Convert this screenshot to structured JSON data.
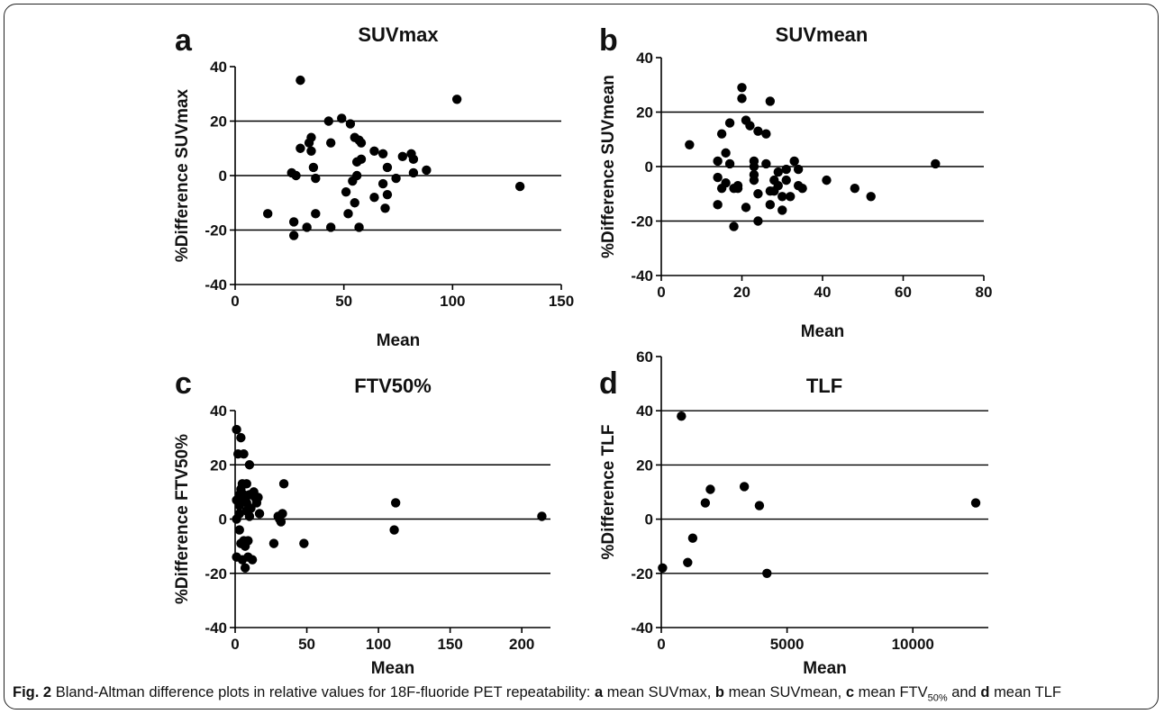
{
  "caption": {
    "fig": "Fig. 2",
    "intro": "Bland-Altman difference plots in relative values for 18F-fluoride PET repeatability:",
    "items": [
      {
        "letter": "a",
        "text": "mean SUVmax"
      },
      {
        "letter": "b",
        "text": "mean SUVmean"
      },
      {
        "letter": "c",
        "text": "mean FTV",
        "sub": "50%"
      },
      {
        "letter": "d",
        "text": "mean TLF"
      }
    ]
  },
  "colors": {
    "points": "#000000",
    "axes": "#000000",
    "text": "#111111"
  },
  "chart_data": [
    {
      "panel": "a",
      "type": "scatter",
      "title": "SUVmax",
      "xlabel": "Mean",
      "ylabel": "%Difference SUVmax",
      "xlim": [
        0,
        150
      ],
      "ylim": [
        -40,
        40
      ],
      "xticks": [
        0,
        50,
        100,
        150
      ],
      "yticks": [
        -40,
        -20,
        0,
        20,
        40
      ],
      "reference_lines": [
        20,
        0,
        -20
      ],
      "points": [
        [
          30,
          35
        ],
        [
          102,
          28
        ],
        [
          131,
          -4
        ],
        [
          15,
          -14
        ],
        [
          26,
          1
        ],
        [
          27,
          -22
        ],
        [
          27,
          -17
        ],
        [
          28,
          0
        ],
        [
          30,
          10
        ],
        [
          33,
          -19
        ],
        [
          34,
          12
        ],
        [
          35,
          9
        ],
        [
          35,
          14
        ],
        [
          36,
          3
        ],
        [
          37,
          -1
        ],
        [
          37,
          -14
        ],
        [
          43,
          20
        ],
        [
          44,
          12
        ],
        [
          44,
          -19
        ],
        [
          49,
          21
        ],
        [
          51,
          -6
        ],
        [
          52,
          -14
        ],
        [
          53,
          19
        ],
        [
          54,
          -2
        ],
        [
          55,
          14
        ],
        [
          55,
          -10
        ],
        [
          56,
          5
        ],
        [
          56,
          0
        ],
        [
          57,
          13
        ],
        [
          57,
          -19
        ],
        [
          58,
          12
        ],
        [
          58,
          6
        ],
        [
          64,
          9
        ],
        [
          64,
          -8
        ],
        [
          68,
          8
        ],
        [
          68,
          -3
        ],
        [
          69,
          -12
        ],
        [
          70,
          3
        ],
        [
          70,
          -7
        ],
        [
          74,
          -1
        ],
        [
          77,
          7
        ],
        [
          81,
          8
        ],
        [
          82,
          6
        ],
        [
          82,
          1
        ],
        [
          88,
          2
        ]
      ]
    },
    {
      "panel": "b",
      "type": "scatter",
      "title": "SUVmean",
      "xlabel": "Mean",
      "ylabel": "%Difference SUVmean",
      "xlim": [
        0,
        80
      ],
      "ylim": [
        -40,
        40
      ],
      "xticks": [
        0,
        20,
        40,
        60,
        80
      ],
      "yticks": [
        -40,
        -20,
        0,
        20,
        40
      ],
      "reference_lines": [
        20,
        0,
        -20
      ],
      "points": [
        [
          7,
          8
        ],
        [
          14,
          2
        ],
        [
          14,
          -4
        ],
        [
          14,
          -14
        ],
        [
          15,
          12
        ],
        [
          15,
          -8
        ],
        [
          16,
          5
        ],
        [
          16,
          -6
        ],
        [
          17,
          1
        ],
        [
          17,
          16
        ],
        [
          18,
          -8
        ],
        [
          18,
          -22
        ],
        [
          19,
          -7
        ],
        [
          19,
          -8
        ],
        [
          20,
          29
        ],
        [
          20,
          25
        ],
        [
          21,
          17
        ],
        [
          21,
          -15
        ],
        [
          22,
          15
        ],
        [
          23,
          2
        ],
        [
          23,
          0
        ],
        [
          23,
          -3
        ],
        [
          23,
          -5
        ],
        [
          24,
          13
        ],
        [
          24,
          -10
        ],
        [
          24,
          -20
        ],
        [
          26,
          12
        ],
        [
          26,
          1
        ],
        [
          27,
          24
        ],
        [
          27,
          -9
        ],
        [
          27,
          -14
        ],
        [
          28,
          -5
        ],
        [
          28,
          -9
        ],
        [
          29,
          -2
        ],
        [
          29,
          -7
        ],
        [
          30,
          -11
        ],
        [
          30,
          -16
        ],
        [
          31,
          -5
        ],
        [
          31,
          -1
        ],
        [
          32,
          -11
        ],
        [
          33,
          2
        ],
        [
          34,
          -1
        ],
        [
          34,
          -7
        ],
        [
          35,
          -8
        ],
        [
          41,
          -5
        ],
        [
          48,
          -8
        ],
        [
          52,
          -11
        ],
        [
          68,
          1
        ]
      ]
    },
    {
      "panel": "c",
      "type": "scatter",
      "title": "FTV50%",
      "xlabel": "Mean",
      "ylabel": "%Difference FTV50%",
      "xlim": [
        0,
        220
      ],
      "ylim": [
        -40,
        40
      ],
      "xticks": [
        0,
        50,
        100,
        150,
        200
      ],
      "yticks": [
        -40,
        -20,
        0,
        20,
        40
      ],
      "reference_lines": [
        20,
        0,
        -20
      ],
      "points": [
        [
          1,
          33
        ],
        [
          1,
          7
        ],
        [
          1,
          0
        ],
        [
          1,
          -14
        ],
        [
          2,
          24
        ],
        [
          3,
          9
        ],
        [
          3,
          5
        ],
        [
          3,
          2
        ],
        [
          3,
          -4
        ],
        [
          4,
          30
        ],
        [
          4,
          11
        ],
        [
          4,
          -9
        ],
        [
          5,
          13
        ],
        [
          5,
          7
        ],
        [
          5,
          -15
        ],
        [
          6,
          24
        ],
        [
          6,
          9
        ],
        [
          6,
          -8
        ],
        [
          7,
          -18
        ],
        [
          7,
          -10
        ],
        [
          8,
          13
        ],
        [
          8,
          6
        ],
        [
          8,
          3
        ],
        [
          9,
          -8
        ],
        [
          9,
          -14
        ],
        [
          10,
          20
        ],
        [
          10,
          9
        ],
        [
          10,
          1
        ],
        [
          11,
          4
        ],
        [
          12,
          -15
        ],
        [
          13,
          10
        ],
        [
          14,
          8
        ],
        [
          15,
          6
        ],
        [
          16,
          8
        ],
        [
          17,
          2
        ],
        [
          27,
          -9
        ],
        [
          30,
          1
        ],
        [
          31,
          0
        ],
        [
          32,
          -1
        ],
        [
          33,
          2
        ],
        [
          34,
          13
        ],
        [
          48,
          -9
        ],
        [
          112,
          6
        ],
        [
          111,
          -4
        ],
        [
          214,
          1
        ]
      ]
    },
    {
      "panel": "d",
      "type": "scatter",
      "title": "TLF",
      "xlabel": "Mean",
      "ylabel": "%Difference TLF",
      "xlim": [
        0,
        13000
      ],
      "ylim": [
        -40,
        60
      ],
      "xticks": [
        0,
        5000,
        10000
      ],
      "yticks": [
        -40,
        -20,
        0,
        20,
        40,
        60
      ],
      "reference_lines": [
        40,
        20,
        0,
        -20
      ],
      "points": [
        [
          50,
          -18
        ],
        [
          800,
          38
        ],
        [
          1050,
          -16
        ],
        [
          1250,
          -7
        ],
        [
          1750,
          6
        ],
        [
          1950,
          11
        ],
        [
          3300,
          12
        ],
        [
          3900,
          5
        ],
        [
          4200,
          -20
        ],
        [
          12500,
          6
        ]
      ]
    }
  ]
}
